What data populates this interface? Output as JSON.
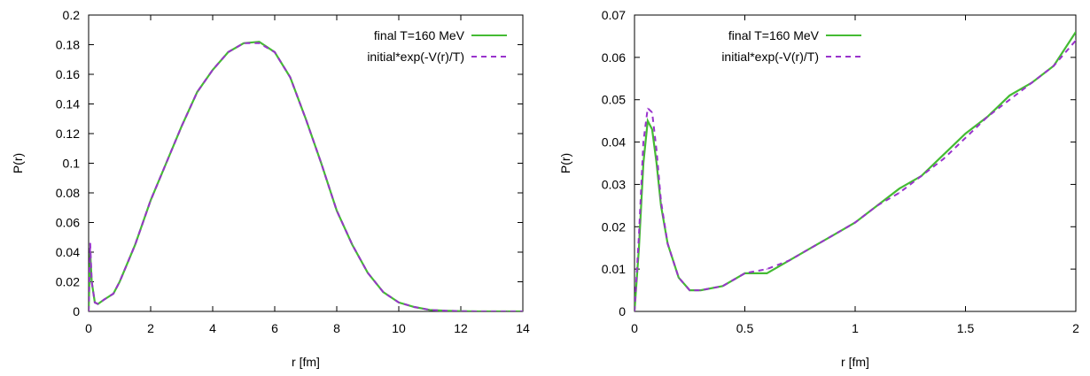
{
  "chart_data": [
    {
      "type": "line",
      "xlabel": "r [fm]",
      "ylabel": "P(r)",
      "xlim": [
        0,
        14
      ],
      "ylim": [
        0,
        0.2
      ],
      "xticks": [
        "0",
        "2",
        "4",
        "6",
        "8",
        "10",
        "12",
        "14"
      ],
      "yticks": [
        "0",
        "0.02",
        "0.04",
        "0.06",
        "0.08",
        "0.1",
        "0.12",
        "0.14",
        "0.16",
        "0.18",
        "0.2"
      ],
      "legend_position": "top-right",
      "grid": false,
      "series": [
        {
          "name": "final T=160 MeV",
          "color": "#44bb33",
          "style": "solid",
          "x": [
            0,
            0.05,
            0.1,
            0.2,
            0.3,
            0.5,
            0.8,
            1.0,
            1.5,
            2.0,
            2.5,
            3.0,
            3.5,
            4.0,
            4.5,
            5.0,
            5.5,
            6.0,
            6.5,
            7.0,
            7.5,
            8.0,
            8.5,
            9.0,
            9.5,
            10.0,
            10.5,
            11.0,
            11.5,
            12.0,
            12.5,
            13.0,
            13.5,
            14.0
          ],
          "y": [
            0.0,
            0.04,
            0.02,
            0.006,
            0.005,
            0.008,
            0.012,
            0.02,
            0.045,
            0.075,
            0.1,
            0.125,
            0.148,
            0.163,
            0.175,
            0.181,
            0.182,
            0.175,
            0.158,
            0.13,
            0.1,
            0.068,
            0.045,
            0.026,
            0.013,
            0.006,
            0.003,
            0.001,
            0.0005,
            0.0002,
            0.0,
            0.0,
            0.0,
            0.0
          ]
        },
        {
          "name": "initial*exp(-V(r)/T)",
          "color": "#9933cc",
          "style": "dashed",
          "x": [
            0,
            0.05,
            0.1,
            0.2,
            0.3,
            0.5,
            0.8,
            1.0,
            1.5,
            2.0,
            2.5,
            3.0,
            3.5,
            4.0,
            4.5,
            5.0,
            5.5,
            6.0,
            6.5,
            7.0,
            7.5,
            8.0,
            8.5,
            9.0,
            9.5,
            10.0,
            10.5,
            11.0,
            11.5,
            12.0,
            12.5,
            13.0,
            13.5,
            14.0
          ],
          "y": [
            0.0,
            0.046,
            0.02,
            0.006,
            0.005,
            0.008,
            0.012,
            0.02,
            0.045,
            0.075,
            0.1,
            0.125,
            0.148,
            0.163,
            0.175,
            0.181,
            0.181,
            0.175,
            0.158,
            0.13,
            0.1,
            0.068,
            0.045,
            0.026,
            0.013,
            0.006,
            0.003,
            0.001,
            0.0005,
            0.0002,
            0.0,
            0.0,
            0.0,
            0.0
          ]
        }
      ]
    },
    {
      "type": "line",
      "xlabel": "r [fm]",
      "ylabel": "P(r)",
      "xlim": [
        0,
        2
      ],
      "ylim": [
        0,
        0.07
      ],
      "xticks": [
        "0",
        "0.5",
        "1",
        "1.5",
        "2"
      ],
      "yticks": [
        "0",
        "0.01",
        "0.02",
        "0.03",
        "0.04",
        "0.05",
        "0.06",
        "0.07"
      ],
      "legend_position": "top-center",
      "grid": false,
      "series": [
        {
          "name": "final T=160 MeV",
          "color": "#44bb33",
          "style": "solid",
          "x": [
            0,
            0.02,
            0.04,
            0.06,
            0.08,
            0.1,
            0.12,
            0.15,
            0.2,
            0.25,
            0.3,
            0.4,
            0.5,
            0.6,
            0.7,
            0.8,
            0.9,
            1.0,
            1.1,
            1.2,
            1.3,
            1.4,
            1.5,
            1.6,
            1.7,
            1.8,
            1.9,
            2.0
          ],
          "y": [
            0.0,
            0.015,
            0.035,
            0.045,
            0.043,
            0.035,
            0.025,
            0.016,
            0.008,
            0.005,
            0.005,
            0.006,
            0.009,
            0.009,
            0.012,
            0.015,
            0.018,
            0.021,
            0.025,
            0.029,
            0.032,
            0.037,
            0.042,
            0.046,
            0.051,
            0.054,
            0.058,
            0.066
          ]
        },
        {
          "name": "initial*exp(-V(r)/T)",
          "color": "#9933cc",
          "style": "dashed",
          "x": [
            0,
            0.02,
            0.04,
            0.06,
            0.08,
            0.1,
            0.12,
            0.15,
            0.2,
            0.25,
            0.3,
            0.4,
            0.5,
            0.6,
            0.7,
            0.8,
            0.9,
            1.0,
            1.1,
            1.2,
            1.3,
            1.4,
            1.5,
            1.6,
            1.7,
            1.8,
            1.9,
            2.0
          ],
          "y": [
            0.0,
            0.018,
            0.04,
            0.048,
            0.047,
            0.038,
            0.026,
            0.016,
            0.008,
            0.005,
            0.005,
            0.006,
            0.009,
            0.01,
            0.012,
            0.015,
            0.018,
            0.021,
            0.025,
            0.028,
            0.032,
            0.036,
            0.041,
            0.046,
            0.05,
            0.054,
            0.058,
            0.064
          ]
        }
      ]
    }
  ]
}
